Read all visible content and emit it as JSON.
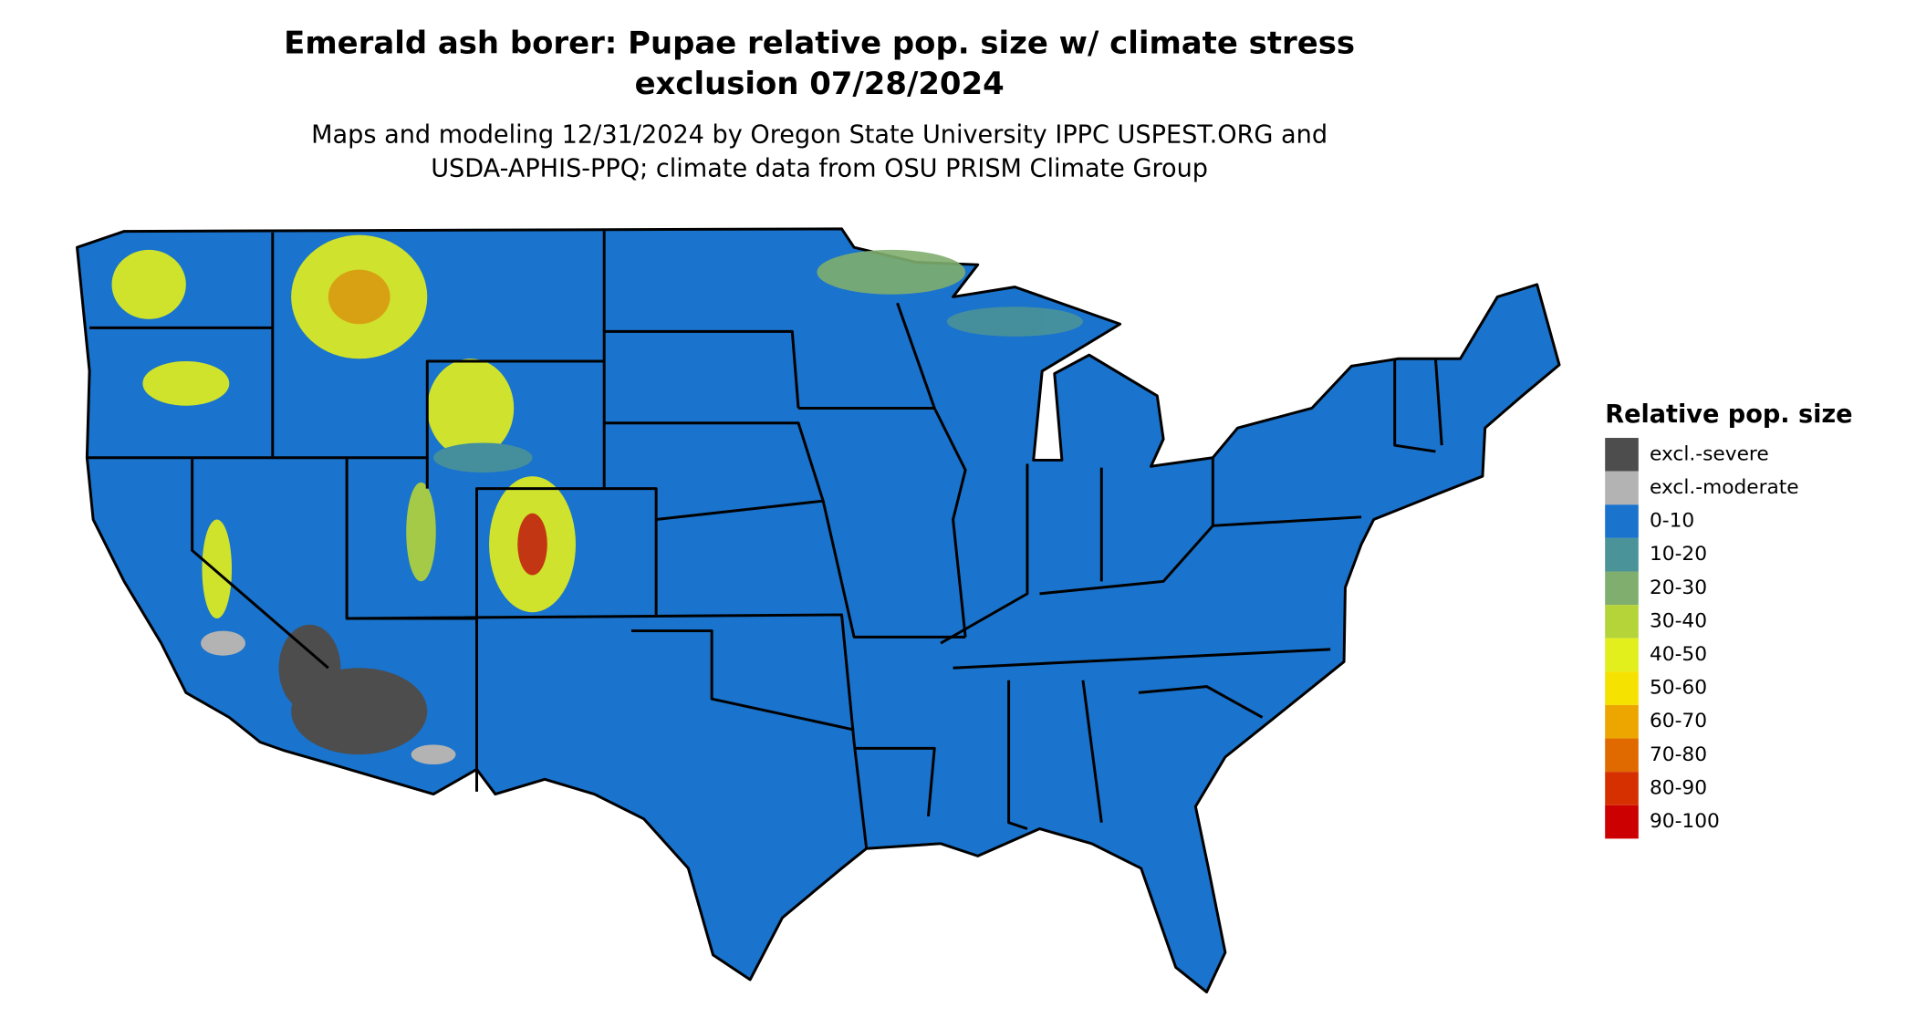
{
  "title_lines": [
    "Emerald ash borer: Pupae relative pop. size w/ climate stress",
    "exclusion 07/28/2024"
  ],
  "subtitle_lines": [
    "Maps and modeling 12/31/2024 by Oregon State University IPPC USPEST.ORG and",
    "USDA-APHIS-PPQ; climate data from OSU PRISM Climate Group"
  ],
  "legend": {
    "title": "Relative pop. size",
    "items": [
      {
        "label": "excl.-severe",
        "color": "#4d4d4d"
      },
      {
        "label": "excl.-moderate",
        "color": "#b3b3b3"
      },
      {
        "label": "0-10",
        "color": "#1a73cc"
      },
      {
        "label": "10-20",
        "color": "#4a9399"
      },
      {
        "label": "20-30",
        "color": "#7fae6e"
      },
      {
        "label": "30-40",
        "color": "#b5d43a"
      },
      {
        "label": "40-50",
        "color": "#e3ef1c"
      },
      {
        "label": "50-60",
        "color": "#f6e200"
      },
      {
        "label": "60-70",
        "color": "#eda600"
      },
      {
        "label": "70-80",
        "color": "#e06a00"
      },
      {
        "label": "80-90",
        "color": "#d63000"
      },
      {
        "label": "90-100",
        "color": "#cc0000"
      }
    ]
  }
}
